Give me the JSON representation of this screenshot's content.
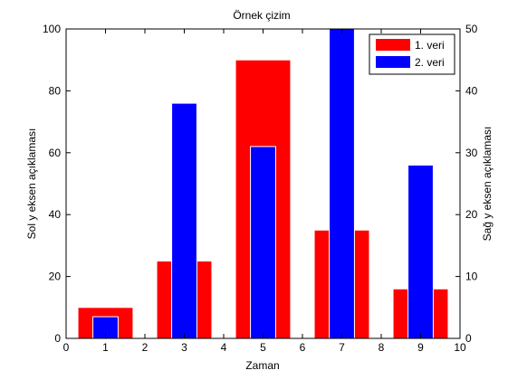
{
  "chart_data": {
    "type": "bar",
    "title": "Örnek çizim",
    "xlabel": "Zaman",
    "ylabel_left": "Sol y  eksen açıklaması",
    "ylabel_right": "Sağ y  eksen açıklaması",
    "xlim": [
      0,
      10
    ],
    "ylim_left": [
      0,
      100
    ],
    "ylim_right": [
      0,
      50
    ],
    "xticks": [
      "0",
      "1",
      "2",
      "3",
      "4",
      "5",
      "6",
      "7",
      "8",
      "9",
      "10"
    ],
    "yticks_left": [
      "0",
      "20",
      "40",
      "60",
      "80",
      "100"
    ],
    "yticks_right": [
      "0",
      "10",
      "20",
      "30",
      "40",
      "50"
    ],
    "grid": false,
    "legend_position": "top-right",
    "series": [
      {
        "name": "1. veri",
        "axis": "left",
        "color": "#ff0000",
        "x": [
          1,
          3,
          5,
          7,
          9
        ],
        "values": [
          10,
          25,
          90,
          35,
          16
        ]
      },
      {
        "name": "2. veri",
        "axis": "right",
        "color": "#0000ff",
        "x": [
          1,
          3,
          5,
          7,
          9
        ],
        "values": [
          3.5,
          38,
          31,
          50,
          28
        ]
      }
    ]
  }
}
